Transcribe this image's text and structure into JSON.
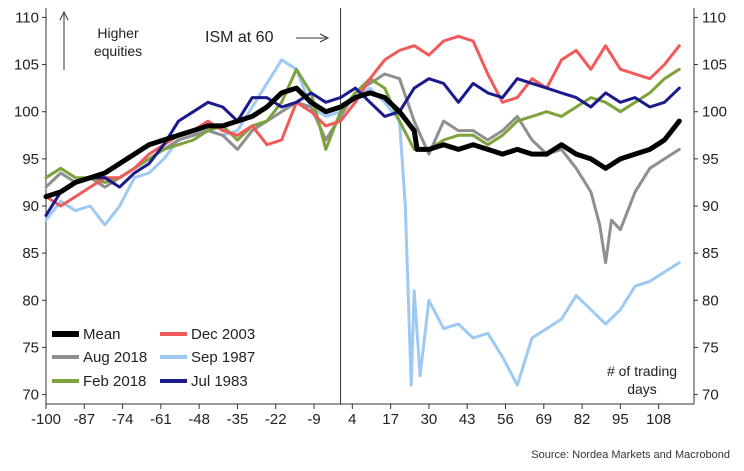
{
  "chart_data": {
    "type": "line",
    "xlabel": "",
    "ylabel": "",
    "xlim": [
      -100,
      120
    ],
    "ylim": [
      69,
      111
    ],
    "x_ticks": [
      -100,
      -87,
      -74,
      -61,
      -48,
      -35,
      -22,
      -9,
      4,
      17,
      30,
      43,
      56,
      69,
      82,
      95,
      108
    ],
    "x_tick_labels": [
      "-100",
      "-87",
      "-74",
      "-61",
      "-48",
      "-35",
      "-22",
      "-9",
      "4",
      "17",
      "30",
      "43",
      "56",
      "69",
      "82",
      "95",
      "108"
    ],
    "y_ticks": [
      70,
      75,
      80,
      85,
      90,
      95,
      100,
      105,
      110
    ],
    "y_tick_labels": [
      "70",
      "75",
      "80",
      "85",
      "90",
      "95",
      "100",
      "105",
      "110"
    ],
    "grid": false,
    "legend_position": "bottom-left",
    "event_x": 0,
    "annotations": {
      "higher_equities": [
        "Higher",
        "equities"
      ],
      "ism": "ISM at 60",
      "trading_days": [
        "# of trading",
        "days"
      ],
      "source": "Source: Nordea Markets and Macrobond"
    },
    "series": [
      {
        "name": "Mean",
        "color": "#000000",
        "x": [
          -100,
          -95,
          -90,
          -85,
          -80,
          -75,
          -70,
          -65,
          -60,
          -55,
          -50,
          -45,
          -40,
          -35,
          -30,
          -25,
          -20,
          -15,
          -10,
          -5,
          0,
          5,
          10,
          15,
          20,
          25,
          26,
          30,
          35,
          40,
          45,
          50,
          55,
          60,
          65,
          70,
          75,
          80,
          85,
          90,
          95,
          100,
          105,
          110,
          115
        ],
        "values": [
          91,
          91.5,
          92.5,
          93,
          93.5,
          94.5,
          95.5,
          96.5,
          97,
          97.5,
          98,
          98.5,
          98.5,
          99,
          99.5,
          100.5,
          102,
          102.5,
          101,
          100,
          100.5,
          101.5,
          102,
          101.5,
          100,
          98,
          96,
          96,
          96.5,
          96,
          96.5,
          96,
          95.5,
          96,
          95.5,
          95.5,
          96.5,
          95.5,
          95,
          94,
          95,
          95.5,
          96,
          97,
          99
        ]
      },
      {
        "name": "Dec 2003",
        "color": "#f05a5a",
        "x": [
          -100,
          -95,
          -90,
          -85,
          -80,
          -75,
          -70,
          -65,
          -60,
          -55,
          -50,
          -45,
          -40,
          -35,
          -30,
          -25,
          -20,
          -15,
          -10,
          -5,
          0,
          5,
          10,
          15,
          20,
          25,
          30,
          35,
          40,
          45,
          50,
          55,
          60,
          65,
          70,
          75,
          80,
          85,
          90,
          95,
          100,
          105,
          110,
          115
        ],
        "values": [
          91,
          90,
          91,
          92,
          93,
          93,
          94,
          95.5,
          96.5,
          97.5,
          98,
          99,
          98,
          97.5,
          98.5,
          96.5,
          97,
          101,
          100,
          98.5,
          99,
          101,
          103.5,
          105.5,
          106.5,
          107,
          106,
          107.5,
          108,
          107.5,
          104,
          101,
          101.5,
          103.5,
          102.5,
          105.5,
          106.5,
          104.5,
          107,
          104.5,
          104,
          103.5,
          105,
          107
        ]
      },
      {
        "name": "Aug 2018",
        "color": "#8f8f8f",
        "x": [
          -100,
          -95,
          -90,
          -85,
          -80,
          -75,
          -70,
          -65,
          -60,
          -55,
          -50,
          -45,
          -40,
          -35,
          -30,
          -25,
          -20,
          -15,
          -10,
          -5,
          0,
          5,
          10,
          15,
          20,
          25,
          30,
          35,
          40,
          45,
          50,
          55,
          60,
          65,
          70,
          75,
          80,
          85,
          88,
          90,
          92,
          95,
          100,
          105,
          110,
          115
        ],
        "values": [
          92,
          93.5,
          92.5,
          93,
          92,
          93,
          94,
          95,
          96,
          97,
          97.5,
          98,
          97.5,
          96,
          98,
          99,
          100,
          101,
          100.5,
          97,
          99.5,
          102,
          103,
          104,
          103.5,
          99,
          95.5,
          99,
          98,
          98,
          97,
          98,
          99.5,
          97,
          95.5,
          96,
          94,
          91.5,
          88,
          84,
          88.5,
          87.5,
          91.5,
          94,
          95,
          96
        ]
      },
      {
        "name": "Sep 1987",
        "color": "#9ec9f2",
        "x": [
          -100,
          -95,
          -90,
          -85,
          -80,
          -75,
          -70,
          -65,
          -60,
          -55,
          -50,
          -45,
          -40,
          -35,
          -30,
          -25,
          -20,
          -15,
          -10,
          -5,
          0,
          5,
          10,
          15,
          20,
          22,
          24,
          25,
          27,
          30,
          35,
          40,
          45,
          50,
          55,
          60,
          65,
          70,
          75,
          80,
          85,
          90,
          95,
          100,
          105,
          110,
          115
        ],
        "values": [
          88.5,
          90.5,
          89.5,
          90,
          88,
          90,
          93,
          93.5,
          95,
          97,
          97.5,
          98,
          97.5,
          98,
          100.5,
          103,
          105.5,
          104.5,
          100.5,
          99.5,
          100,
          101.5,
          102.5,
          101,
          99,
          90,
          71,
          81,
          72,
          80,
          77,
          77.5,
          76,
          76.5,
          74,
          71,
          76,
          77,
          78,
          80.5,
          79,
          77.5,
          79,
          81.5,
          82,
          83,
          84
        ]
      },
      {
        "name": "Feb 2018",
        "color": "#7ea33d",
        "x": [
          -100,
          -95,
          -90,
          -85,
          -80,
          -75,
          -70,
          -65,
          -60,
          -55,
          -50,
          -45,
          -40,
          -35,
          -30,
          -25,
          -20,
          -15,
          -10,
          -5,
          0,
          5,
          10,
          15,
          20,
          25,
          30,
          35,
          40,
          45,
          50,
          55,
          60,
          65,
          70,
          75,
          80,
          85,
          90,
          95,
          100,
          105,
          110,
          115
        ],
        "values": [
          93,
          94,
          93,
          93,
          92.5,
          93,
          94,
          95,
          96,
          96.5,
          97,
          98,
          98.5,
          97,
          98.5,
          99,
          101,
          104.5,
          102,
          96,
          100,
          102,
          103.5,
          102.5,
          99,
          96,
          96,
          97,
          97.5,
          97.5,
          96.5,
          97.5,
          99,
          99.5,
          100,
          99.5,
          100.5,
          101.5,
          101,
          100,
          101,
          102,
          103.5,
          104.5
        ]
      },
      {
        "name": "Jul 1983",
        "color": "#1a1a8c",
        "x": [
          -100,
          -95,
          -90,
          -85,
          -80,
          -75,
          -70,
          -65,
          -60,
          -55,
          -50,
          -45,
          -40,
          -35,
          -30,
          -25,
          -20,
          -15,
          -10,
          -5,
          0,
          5,
          10,
          15,
          20,
          25,
          30,
          35,
          40,
          45,
          50,
          55,
          60,
          65,
          70,
          75,
          80,
          85,
          90,
          95,
          100,
          105,
          110,
          115
        ],
        "values": [
          89,
          91.5,
          92.5,
          93,
          93,
          92,
          93.5,
          94.5,
          96.5,
          99,
          100,
          101,
          100.5,
          99,
          101.5,
          101.5,
          100.5,
          101,
          102,
          101,
          101.5,
          102.5,
          101,
          99.5,
          100,
          102.5,
          103.5,
          103,
          101,
          103,
          102,
          101.5,
          103.5,
          103,
          102.5,
          102,
          101.5,
          100.5,
          102,
          101,
          101.5,
          100.5,
          101,
          102.5
        ]
      }
    ]
  }
}
